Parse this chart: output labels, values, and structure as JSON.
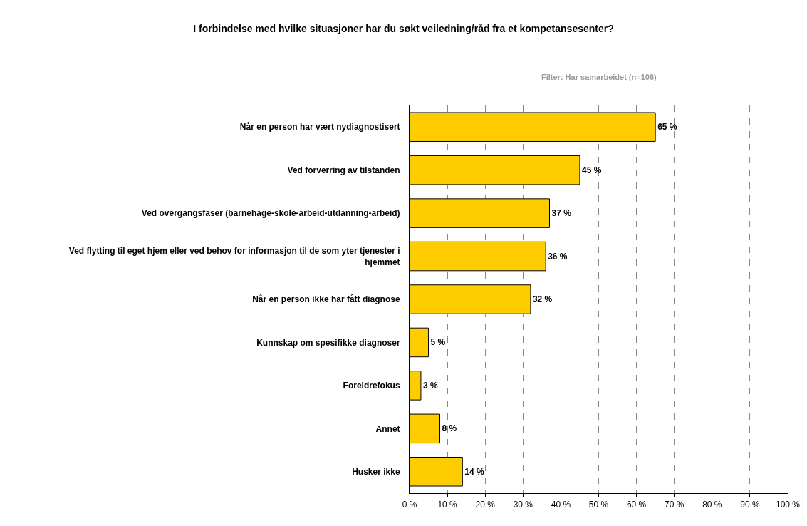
{
  "chart_data": {
    "type": "bar",
    "orientation": "horizontal",
    "title": "I forbindelse med hvilke situasjoner har du søkt veiledning/råd fra et kompetansesenter?",
    "subtitle": "Filter: Har samarbeidet (n=106)",
    "categories": [
      "Når en person har vært nydiagnostisert",
      "Ved forverring av tilstanden",
      "Ved overgangsfaser (barnehage-skole-arbeid-utdanning-arbeid)",
      "Ved flytting til eget hjem eller ved behov for informasjon til de som yter tjenester i hjemmet",
      "Når en person ikke har fått diagnose",
      "Kunnskap om spesifikke diagnoser",
      "Foreldrefokus",
      "Annet",
      "Husker ikke"
    ],
    "values": [
      65,
      45,
      37,
      36,
      32,
      5,
      3,
      8,
      14
    ],
    "value_labels": [
      "65 %",
      "45 %",
      "37 %",
      "36 %",
      "32 %",
      "5 %",
      "3 %",
      "8 %",
      "14 %"
    ],
    "color": "#ffcc00",
    "xlim": [
      0,
      100
    ],
    "xticks": [
      {
        "value": 0,
        "label": "0 %"
      },
      {
        "value": 10,
        "label": "10 %"
      },
      {
        "value": 20,
        "label": "20 %"
      },
      {
        "value": 30,
        "label": "30 %"
      },
      {
        "value": 40,
        "label": "40 %"
      },
      {
        "value": 50,
        "label": "50 %"
      },
      {
        "value": 60,
        "label": "60 %"
      },
      {
        "value": 70,
        "label": "70 %"
      },
      {
        "value": 80,
        "label": "80 %"
      },
      {
        "value": 90,
        "label": "90 %"
      },
      {
        "value": 100,
        "label": "100 %"
      }
    ],
    "grid": "x"
  }
}
